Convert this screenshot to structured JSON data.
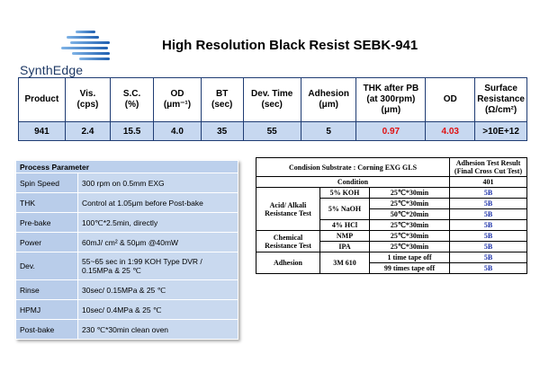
{
  "brand": {
    "name": "SynthEdge"
  },
  "title": "High Resolution Black Resist  SEBK-941",
  "spec_table": {
    "headers": [
      {
        "lines": [
          "Product"
        ]
      },
      {
        "lines": [
          "Vis.",
          "(cps)"
        ]
      },
      {
        "lines": [
          "S.C.",
          "(%)"
        ]
      },
      {
        "lines": [
          "OD",
          "(μm⁻¹)"
        ]
      },
      {
        "lines": [
          "BT",
          "(sec)"
        ]
      },
      {
        "lines": [
          "Dev. Time",
          "(sec)"
        ]
      },
      {
        "lines": [
          "Adhesion",
          "(μm)"
        ]
      },
      {
        "lines": [
          "THK after PB",
          "(at 300rpm)",
          "(μm)"
        ]
      },
      {
        "lines": [
          "OD"
        ]
      },
      {
        "lines": [
          "Surface",
          "Resistance",
          "(Ω/cm²)"
        ]
      }
    ],
    "values": [
      "941",
      "2.4",
      "15.5",
      "4.0",
      "35",
      "55",
      "5",
      "0.97",
      "4.03",
      ">10E+12"
    ],
    "highlight_color": "#e01010"
  },
  "process": {
    "title": "Process Parameter",
    "rows": [
      {
        "label": "Spin Speed",
        "value": "300 rpm on  0.5mm EXG"
      },
      {
        "label": "THK",
        "value": "Control  at  1.05μm before Post-bake"
      },
      {
        "label": "Pre-bake",
        "value": "100℃*2.5min, directly"
      },
      {
        "label": "Power",
        "value": "60mJ/ cm² &  50μm @40mW"
      },
      {
        "label": "Dev.",
        "value": "55~65 sec in 1:99  KOH Type DVR  /",
        "value2": "0.15MPa & 25 ℃"
      },
      {
        "label": "Rinse",
        "value": "30sec/ 0.15MPa & 25 ℃"
      },
      {
        "label": "HPMJ",
        "value": "10sec/ 0.4MPa & 25 ℃"
      },
      {
        "label": "Post-bake",
        "value": "230 ℃*30min clean oven"
      }
    ]
  },
  "adhesion": {
    "header_left": "Condision Substrate : Corning EXG GLS",
    "header_right": [
      "Adhesion Test Result",
      "(Final Cross Cut Test)"
    ],
    "condition_label": "Condition",
    "condition_value": "401",
    "groups": {
      "acid": [
        "Acid/ Alkali",
        "Resistance Test"
      ],
      "chemical": [
        "Chemical",
        "Resistance Test"
      ],
      "adhesion": "Adhesion"
    },
    "rows": [
      {
        "chemical": "5% KOH",
        "condition": "25℃*30min",
        "result": "5B"
      },
      {
        "chemical": "5% NaOH",
        "condition": "25℃*30min",
        "result": "5B"
      },
      {
        "condition": "50℃*20min",
        "result": "5B"
      },
      {
        "chemical": "4% HCl",
        "condition": "25℃*30min",
        "result": "5B"
      },
      {
        "chemical": "NMP",
        "condition": "25℃*30min",
        "result": "5B"
      },
      {
        "chemical": "IPA",
        "condition": "25℃*30min",
        "result": "5B"
      },
      {
        "chemical": "3M 610",
        "condition": "1 time tape off",
        "result": "5B"
      },
      {
        "condition": "99 times tape off",
        "result": "5B"
      }
    ],
    "result_color": "#1a2fa8"
  }
}
